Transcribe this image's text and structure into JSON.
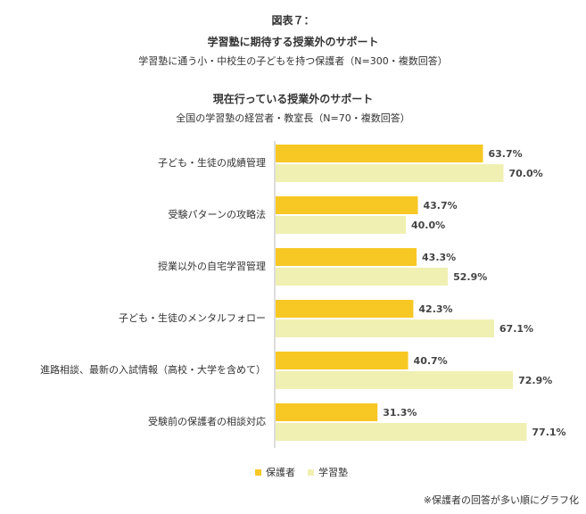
{
  "header": {
    "figure_label": "図表７：",
    "title": "学習塾に期待する授業外のサポート",
    "subtitle": "学習塾に通う小・中校生の子どもを持つ保護者（N=300・複数回答）",
    "title2": "現在行っている授業外のサポート",
    "subtitle2": "全国の学習塾の経営者・教室長（N=70・複数回答）"
  },
  "colors": {
    "guardian": "#f7c824",
    "juku": "#f0f0b2",
    "axis": "#bbbbbb"
  },
  "chart_data": {
    "type": "bar",
    "orientation": "horizontal",
    "xlim": [
      0,
      100
    ],
    "categories": [
      "子ども・生徒の成績管理",
      "受験パターンの攻略法",
      "授業以外の自宅学習管理",
      "子ども・生徒のメンタルフォロー",
      "進路相談、最新の入試情報（高校・大学を含めて）",
      "受験前の保護者の相談対応"
    ],
    "series": [
      {
        "name": "保護者",
        "values": [
          63.7,
          43.7,
          43.3,
          42.3,
          40.7,
          31.3
        ],
        "labels": [
          "63.7%",
          "43.7%",
          "43.3%",
          "42.3%",
          "40.7%",
          "31.3%"
        ]
      },
      {
        "name": "学習塾",
        "values": [
          70.0,
          40.0,
          52.9,
          67.1,
          72.9,
          77.1
        ],
        "labels": [
          "70.0%",
          "40.0%",
          "52.9%",
          "67.1%",
          "72.9%",
          "77.1%"
        ]
      }
    ],
    "legend_position": "bottom-center",
    "grid": false
  },
  "footnote": "※保護者の回答が多い順にグラフ化"
}
